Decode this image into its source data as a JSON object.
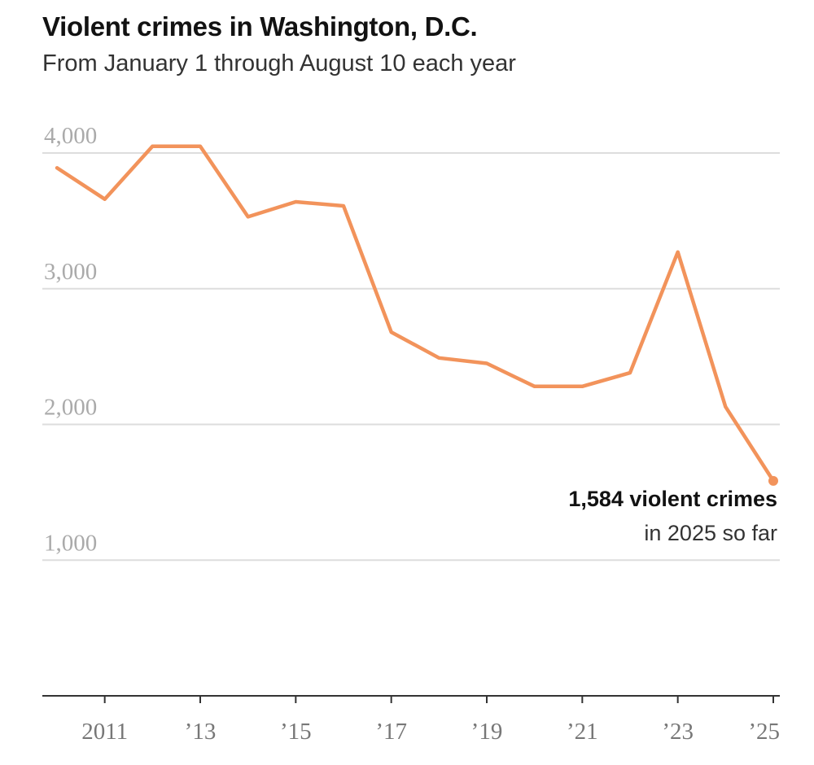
{
  "chart_data": {
    "type": "line",
    "title": "Violent crimes in Washington, D.C.",
    "subtitle": "From January 1 through August 10 each year",
    "x": [
      2010,
      2011,
      2012,
      2013,
      2014,
      2015,
      2016,
      2017,
      2018,
      2019,
      2020,
      2021,
      2022,
      2023,
      2024,
      2025
    ],
    "values": [
      3890,
      3660,
      4050,
      4050,
      3530,
      3640,
      3610,
      2680,
      2490,
      2450,
      2280,
      2280,
      2380,
      3270,
      2130,
      1584
    ],
    "ylim": [
      0,
      4000
    ],
    "xlim": [
      2010,
      2025
    ],
    "yticks": [
      1000,
      2000,
      3000,
      4000
    ],
    "ytick_labels": [
      "1,000",
      "2,000",
      "3,000",
      "4,000"
    ],
    "xticks": [
      2011,
      2013,
      2015,
      2017,
      2019,
      2021,
      2023,
      2025
    ],
    "xtick_labels": [
      "2011",
      "’13",
      "’15",
      "’17",
      "’19",
      "’21",
      "’23",
      "’25"
    ],
    "grid": true,
    "color": "#f2935b",
    "annotation": {
      "year": 2025,
      "value": 1584,
      "line1": "1,584 violent crimes",
      "line2": "in 2025 so far"
    }
  }
}
